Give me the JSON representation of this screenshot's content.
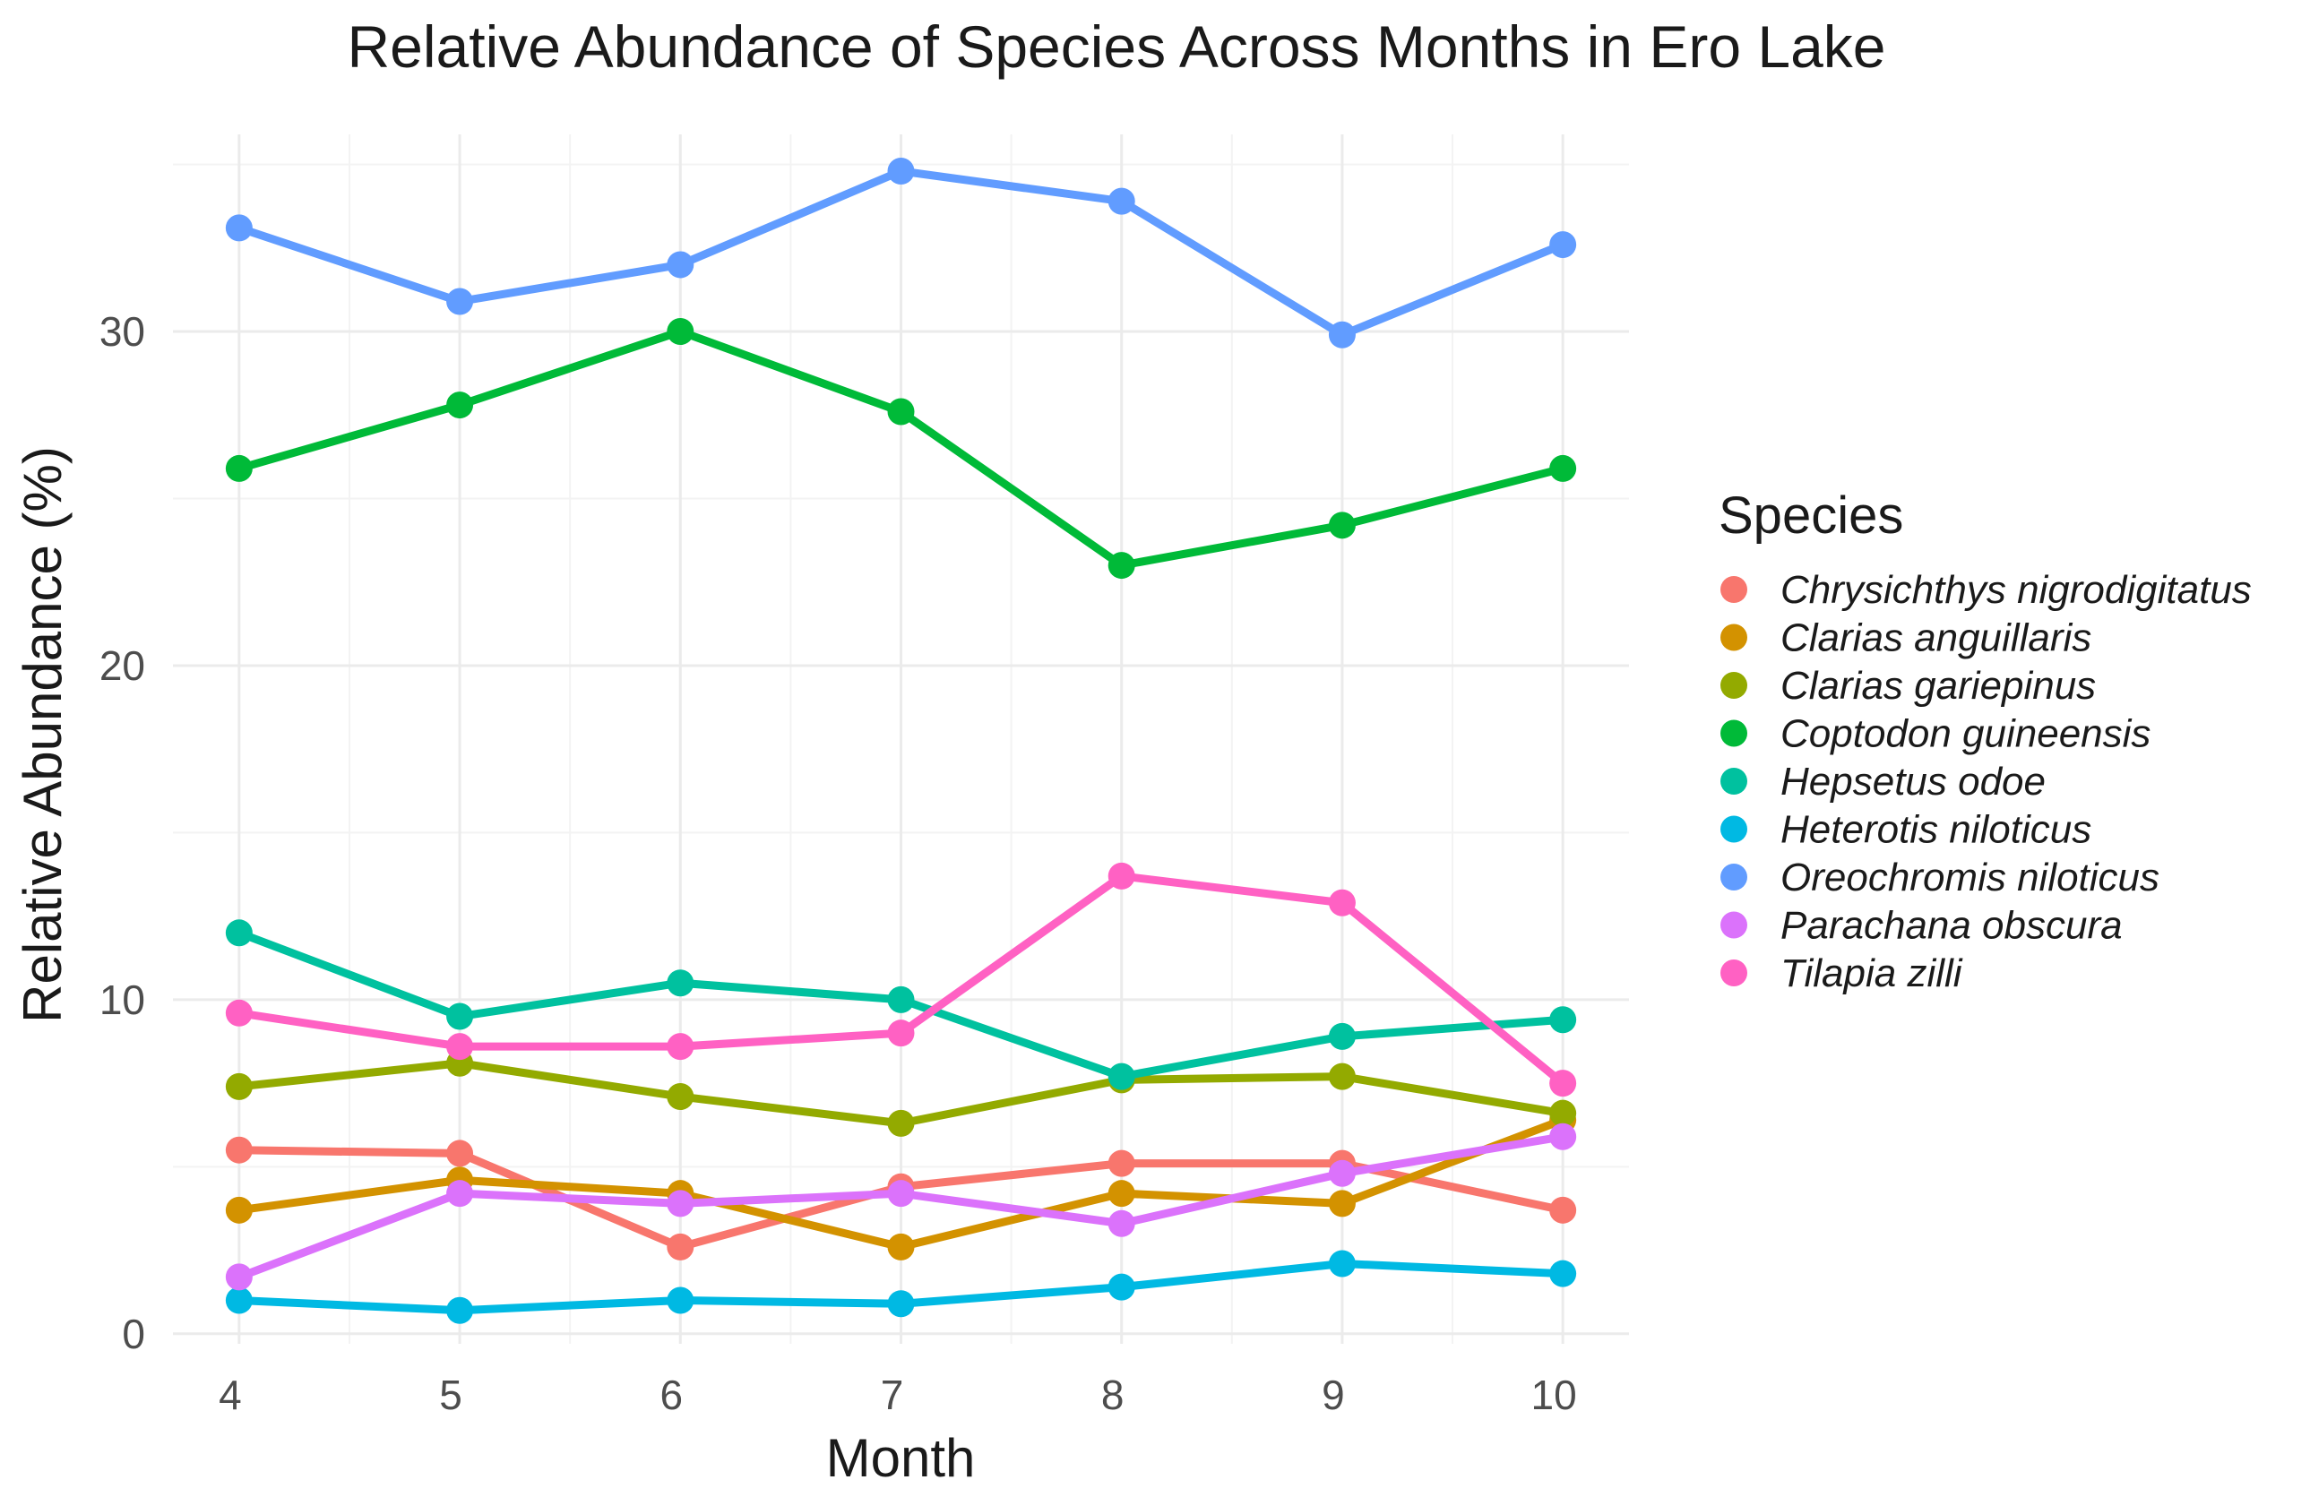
{
  "chart_data": {
    "type": "line",
    "title": "Relative Abundance of Species Across Months in Ero Lake",
    "xlabel": "Month",
    "ylabel": "Relative Abundance (%)",
    "x": [
      4,
      5,
      6,
      7,
      8,
      9,
      10
    ],
    "x_ticks": [
      "4",
      "5",
      "6",
      "7",
      "8",
      "9",
      "10"
    ],
    "y_ticks": [
      "0",
      "10",
      "20",
      "30"
    ],
    "y_tick_values": [
      0,
      10,
      20,
      30
    ],
    "xlim": [
      3.7,
      10.3
    ],
    "ylim": [
      -0.3,
      35.9
    ],
    "grid": true,
    "legend": {
      "title": "Species",
      "position": "right"
    },
    "series": [
      {
        "name": "Chrysichthys nigrodigitatus",
        "color": "#F8766D",
        "values": [
          5.5,
          5.4,
          2.6,
          4.4,
          5.1,
          5.1,
          3.7
        ]
      },
      {
        "name": "Clarias anguillaris",
        "color": "#D39200",
        "values": [
          3.7,
          4.6,
          4.2,
          2.6,
          4.2,
          3.9,
          6.4
        ]
      },
      {
        "name": "Clarias gariepinus",
        "color": "#93AA00",
        "values": [
          7.4,
          8.1,
          7.1,
          6.3,
          7.6,
          7.7,
          6.6
        ]
      },
      {
        "name": "Coptodon guineensis",
        "color": "#00BA38",
        "values": [
          25.9,
          27.8,
          30.0,
          27.6,
          23.0,
          24.2,
          25.9
        ]
      },
      {
        "name": "Hepsetus odoe",
        "color": "#00C19F",
        "values": [
          12.0,
          9.5,
          10.5,
          10.0,
          7.7,
          8.9,
          9.4
        ]
      },
      {
        "name": "Heterotis niloticus",
        "color": "#00B9E3",
        "values": [
          1.0,
          0.7,
          1.0,
          0.9,
          1.4,
          2.1,
          1.8
        ]
      },
      {
        "name": "Oreochromis niloticus",
        "color": "#619CFF",
        "values": [
          33.1,
          30.9,
          32.0,
          34.8,
          33.9,
          29.9,
          32.6
        ]
      },
      {
        "name": "Parachana obscura",
        "color": "#DB72FB",
        "values": [
          1.7,
          4.2,
          3.9,
          4.2,
          3.3,
          4.8,
          5.9
        ]
      },
      {
        "name": "Tilapia zilli",
        "color": "#FF61C3",
        "values": [
          9.6,
          8.6,
          8.6,
          9.0,
          13.7,
          12.9,
          7.5
        ]
      }
    ]
  }
}
